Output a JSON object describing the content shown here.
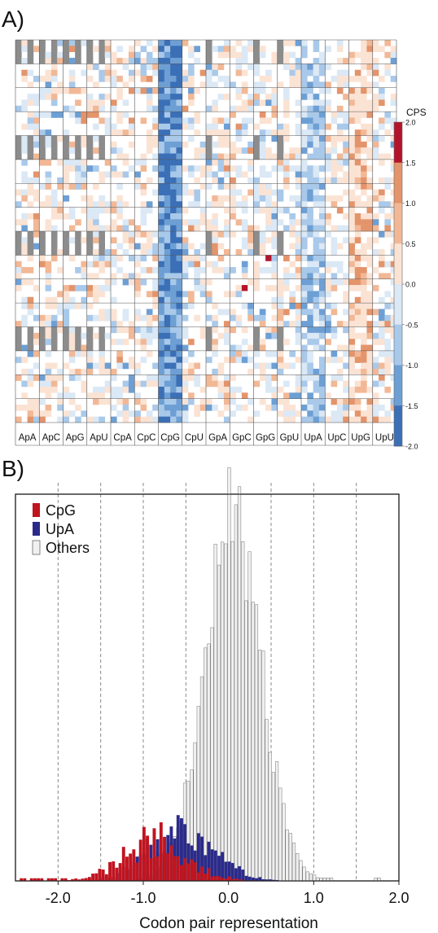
{
  "panel_labels": {
    "a": "A)",
    "b": "B)"
  },
  "colors": {
    "neg_strong": "#3b6fb6",
    "neg_mid": "#6d9fd4",
    "neg_light": "#a9c9ea",
    "neg_faint": "#dbe8f5",
    "pos_faint": "#fbe3d4",
    "pos_light": "#f2b896",
    "pos_mid": "#e4946b",
    "pos_strong": "#b3142a",
    "grey": "#8c8c8c",
    "cpg": "#c0141f",
    "upa": "#2b2a8c",
    "others": "#f0f0f0"
  },
  "chart_data": [
    {
      "type": "heatmap",
      "title": "",
      "column_groups": [
        "ApA",
        "ApC",
        "ApG",
        "ApU",
        "CpA",
        "CpC",
        "CpG",
        "CpU",
        "GpA",
        "GpC",
        "GpG",
        "GpU",
        "UpA",
        "UpC",
        "UpG",
        "UpU"
      ],
      "row_blocks": 16,
      "colorbar": {
        "title": "CPS",
        "ticks": [
          "2.0",
          "1.5",
          "1.0",
          "0.5",
          "0.0",
          "-0.5",
          "-1.0",
          "-1.5",
          "-2.0"
        ],
        "range": [
          -2.0,
          2.0
        ]
      }
    },
    {
      "type": "bar",
      "title": "",
      "xlabel": "Codon pair representation",
      "ylabel": "",
      "xlim": [
        -2.5,
        2.0
      ],
      "xticks": [
        "-2.0",
        "-1.0",
        "0.0",
        "1.0",
        "2.0"
      ],
      "gridlines_x": [
        -2.0,
        -1.5,
        -1.0,
        -0.5,
        0.0,
        0.5,
        1.0,
        1.5
      ],
      "legend": {
        "position": "top-left",
        "entries": [
          "CpG",
          "UpA",
          "Others"
        ]
      },
      "series": [
        {
          "name": "CpG",
          "peak_center": -0.85,
          "peak_height": 0.12
        },
        {
          "name": "UpA",
          "peak_center": -0.55,
          "peak_height": 0.16
        },
        {
          "name": "Others",
          "peak_center": 0.05,
          "peak_height": 1.0
        }
      ]
    }
  ]
}
